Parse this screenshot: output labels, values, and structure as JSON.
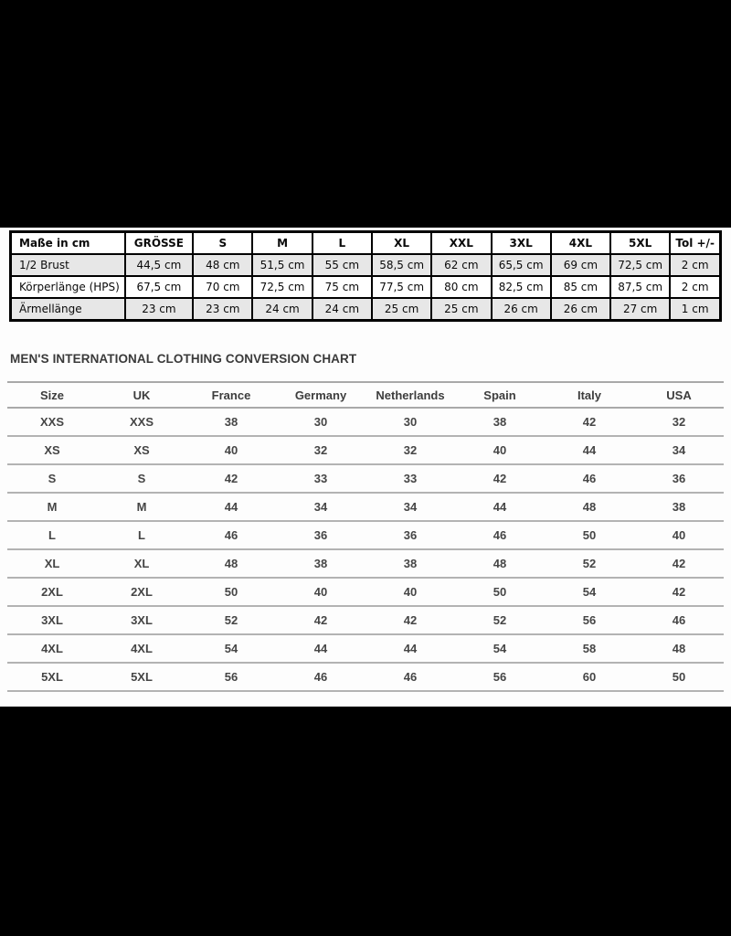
{
  "measurement_table": {
    "headers": [
      "Maße in cm",
      "GRÖSSE",
      "S",
      "M",
      "L",
      "XL",
      "XXL",
      "3XL",
      "4XL",
      "5XL",
      "Tol +/-"
    ],
    "rows": [
      {
        "label": "1/2 Brust",
        "values": [
          "44,5 cm",
          "48 cm",
          "51,5 cm",
          "55 cm",
          "58,5 cm",
          "62 cm",
          "65,5 cm",
          "69 cm",
          "72,5 cm",
          "2 cm"
        ]
      },
      {
        "label": "Körperlänge (HPS)",
        "values": [
          "67,5 cm",
          "70 cm",
          "72,5 cm",
          "75 cm",
          "77,5 cm",
          "80 cm",
          "82,5 cm",
          "85 cm",
          "87,5 cm",
          "2 cm"
        ]
      },
      {
        "label": "Ärmellänge",
        "values": [
          "23 cm",
          "23 cm",
          "24 cm",
          "24 cm",
          "25 cm",
          "25 cm",
          "26 cm",
          "26 cm",
          "27 cm",
          "1 cm"
        ]
      }
    ]
  },
  "conversion_chart": {
    "title": "MEN'S INTERNATIONAL CLOTHING CONVERSION CHART",
    "headers": [
      "Size",
      "UK",
      "France",
      "Germany",
      "Netherlands",
      "Spain",
      "Italy",
      "USA"
    ],
    "rows": [
      [
        "XXS",
        "XXS",
        "38",
        "30",
        "30",
        "38",
        "42",
        "32"
      ],
      [
        "XS",
        "XS",
        "40",
        "32",
        "32",
        "40",
        "44",
        "34"
      ],
      [
        "S",
        "S",
        "42",
        "33",
        "33",
        "42",
        "46",
        "36"
      ],
      [
        "M",
        "M",
        "44",
        "34",
        "34",
        "44",
        "48",
        "38"
      ],
      [
        "L",
        "L",
        "46",
        "36",
        "36",
        "46",
        "50",
        "40"
      ],
      [
        "XL",
        "XL",
        "48",
        "38",
        "38",
        "48",
        "52",
        "42"
      ],
      [
        "2XL",
        "2XL",
        "50",
        "40",
        "40",
        "50",
        "54",
        "42"
      ],
      [
        "3XL",
        "3XL",
        "52",
        "42",
        "42",
        "52",
        "56",
        "46"
      ],
      [
        "4XL",
        "4XL",
        "54",
        "44",
        "44",
        "54",
        "58",
        "48"
      ],
      [
        "5XL",
        "5XL",
        "56",
        "46",
        "46",
        "56",
        "60",
        "50"
      ]
    ]
  },
  "colors": {
    "letterbox": "#000000",
    "panel_background": "#fdfdfd",
    "measure_table_border": "#000000",
    "measure_stripe": "#e7e7e7",
    "conversion_rule": "#a9a9a9",
    "conversion_text": "#3d3d3d"
  }
}
